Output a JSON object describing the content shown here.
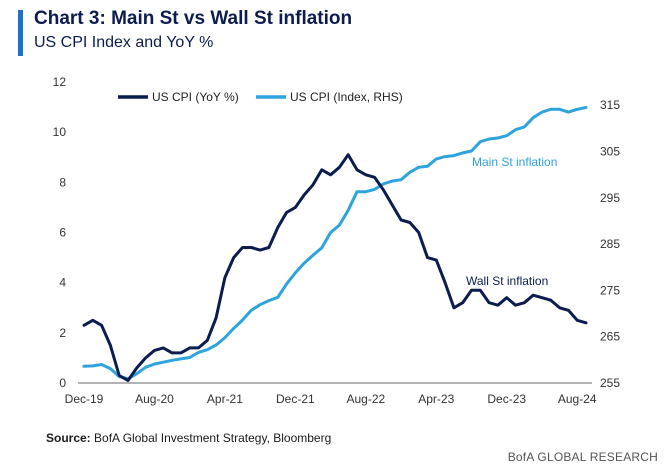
{
  "header": {
    "title": "Chart 3: Main St vs Wall St inflation",
    "subtitle": "US CPI Index and YoY %"
  },
  "footer": {
    "source_label": "Source:",
    "source_text": "BofA Global Investment Strategy, Bloomberg",
    "brand": "BofA GLOBAL RESEARCH"
  },
  "colors": {
    "accent": "#1a73c9",
    "yoy": "#0b1d4f",
    "index": "#2ea3dc",
    "axis_text": "#333333"
  },
  "chart_data": {
    "type": "line",
    "title": "Chart 3: Main St vs Wall St inflation",
    "subtitle": "US CPI Index and YoY %",
    "x_ticks": [
      "Dec-19",
      "Aug-20",
      "Apr-21",
      "Dec-21",
      "Aug-22",
      "Apr-23",
      "Dec-23",
      "Aug-24"
    ],
    "x_start": "2019-12",
    "left_axis": {
      "min": 0,
      "max": 12,
      "ticks": [
        0,
        2,
        4,
        6,
        8,
        10,
        12
      ]
    },
    "right_axis": {
      "min": 255,
      "max": 320,
      "ticks": [
        255,
        265,
        275,
        285,
        295,
        305,
        315
      ]
    },
    "legend": [
      "US CPI (YoY %)",
      "US CPI (Index, RHS)"
    ],
    "annotations": [
      {
        "text": "Main St inflation",
        "series": "US CPI (Index, RHS)"
      },
      {
        "text": "Wall St inflation",
        "series": "US CPI (YoY %)"
      }
    ],
    "series": [
      {
        "name": "US CPI (YoY %)",
        "axis": "left",
        "values": [
          2.3,
          2.5,
          2.3,
          1.5,
          0.3,
          0.1,
          0.6,
          1.0,
          1.3,
          1.4,
          1.2,
          1.2,
          1.4,
          1.4,
          1.7,
          2.6,
          4.2,
          5.0,
          5.4,
          5.4,
          5.3,
          5.4,
          6.2,
          6.8,
          7.0,
          7.5,
          7.9,
          8.5,
          8.3,
          8.6,
          9.1,
          8.5,
          8.3,
          8.2,
          7.7,
          7.1,
          6.5,
          6.4,
          6.0,
          5.0,
          4.9,
          4.0,
          3.0,
          3.2,
          3.7,
          3.7,
          3.2,
          3.1,
          3.4,
          3.1,
          3.2,
          3.5,
          3.4,
          3.3,
          3.0,
          2.9,
          2.5,
          2.4
        ]
      },
      {
        "name": "US CPI (Index, RHS)",
        "axis": "right",
        "values": [
          258.6,
          258.7,
          259.0,
          258.1,
          256.4,
          255.9,
          257.0,
          258.4,
          259.1,
          259.5,
          259.9,
          260.2,
          260.5,
          261.6,
          262.2,
          263.2,
          264.8,
          266.8,
          268.6,
          270.7,
          271.9,
          272.8,
          273.5,
          276.4,
          278.8,
          280.9,
          282.6,
          284.2,
          287.5,
          289.1,
          292.3,
          296.3,
          296.3,
          296.8,
          298.0,
          298.6,
          298.9,
          300.5,
          301.6,
          301.8,
          303.4,
          303.9,
          304.1,
          304.7,
          305.1,
          307.1,
          307.7,
          307.9,
          308.4,
          309.7,
          310.3,
          312.3,
          313.5,
          314.1,
          314.1,
          313.5,
          314.1,
          314.5
        ]
      }
    ]
  }
}
